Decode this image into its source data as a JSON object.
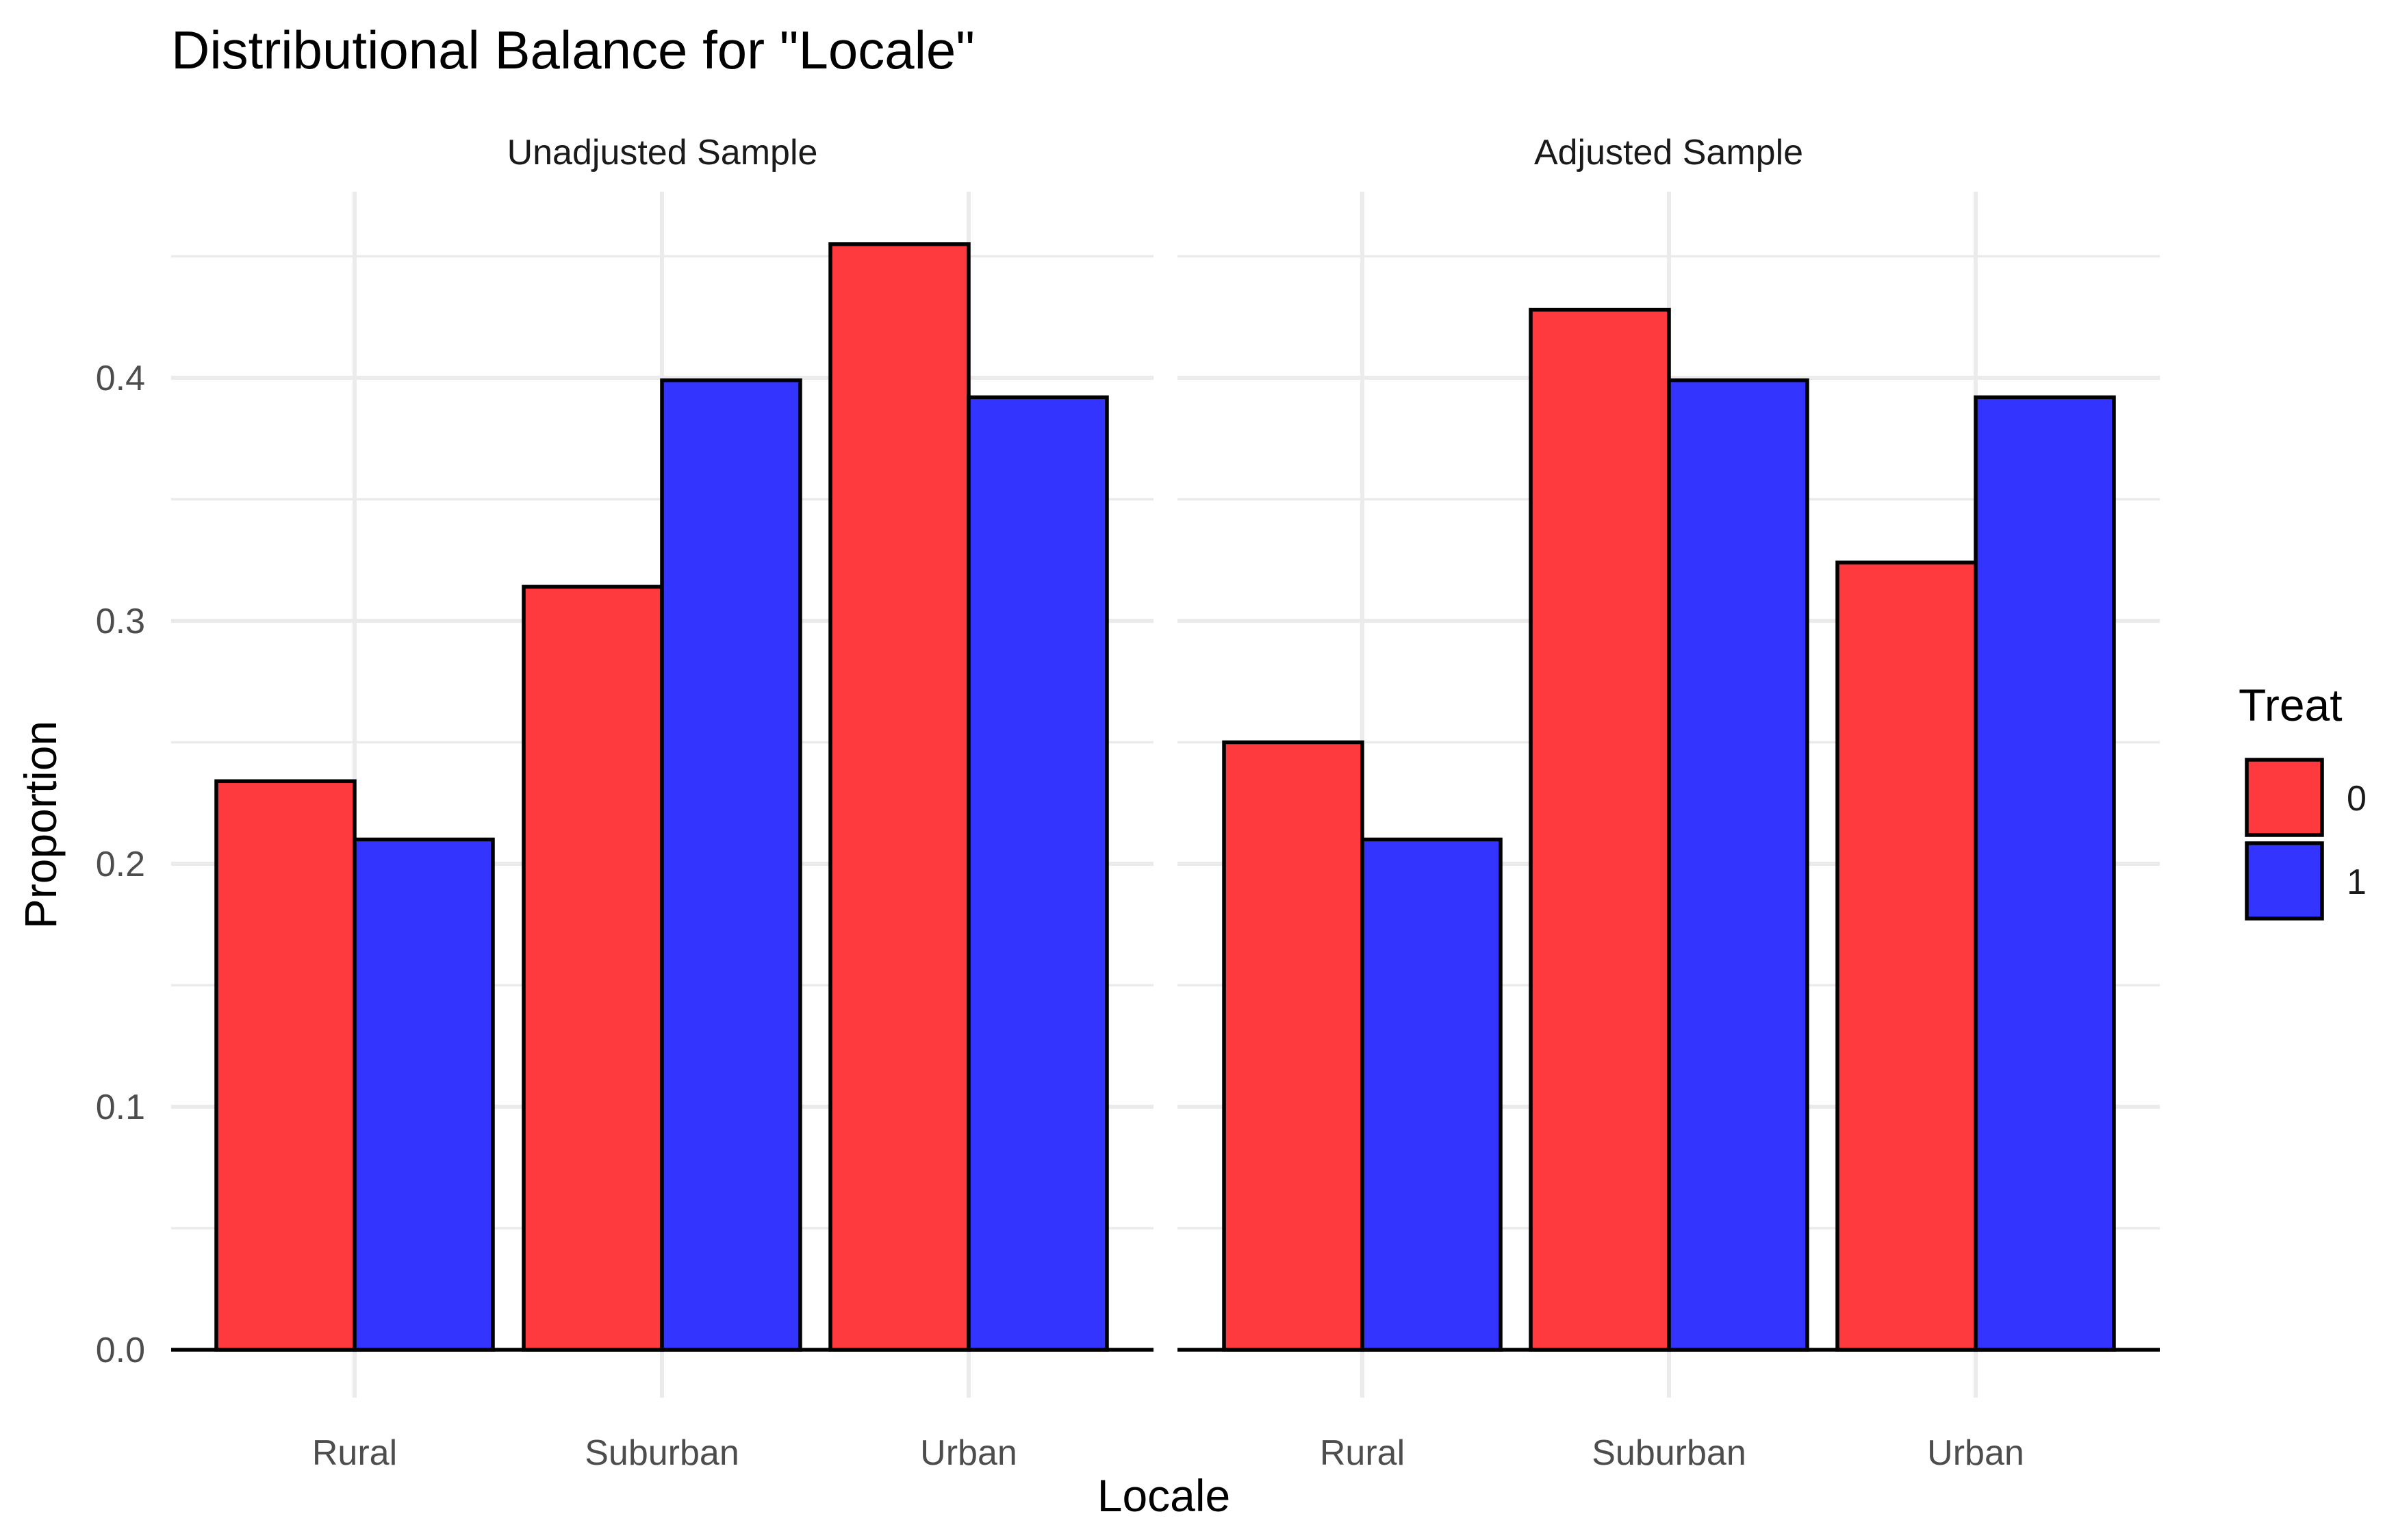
{
  "chart_data": {
    "type": "bar",
    "title": "Distributional Balance for \"Locale\"",
    "xlabel": "Locale",
    "ylabel": "Proportion",
    "ylim": [
      0,
      0.48
    ],
    "yticks": [
      "0.0",
      "0.1",
      "0.2",
      "0.3",
      "0.4"
    ],
    "categories": [
      "Rural",
      "Suburban",
      "Urban"
    ],
    "legend": {
      "title": "Treat",
      "position": "right",
      "entries": [
        {
          "label": "0",
          "color": "#FF3A3F"
        },
        {
          "label": "1",
          "color": "#3434FF"
        }
      ]
    },
    "panels": [
      {
        "title": "Unadjusted Sample",
        "series": [
          {
            "name": "0",
            "values": [
              0.234,
              0.314,
              0.455
            ]
          },
          {
            "name": "1",
            "values": [
              0.21,
              0.399,
              0.392
            ]
          }
        ]
      },
      {
        "title": "Adjusted Sample",
        "series": [
          {
            "name": "0",
            "values": [
              0.25,
              0.428,
              0.324
            ]
          },
          {
            "name": "1",
            "values": [
              0.21,
              0.399,
              0.392
            ]
          }
        ]
      }
    ],
    "grid": true
  }
}
